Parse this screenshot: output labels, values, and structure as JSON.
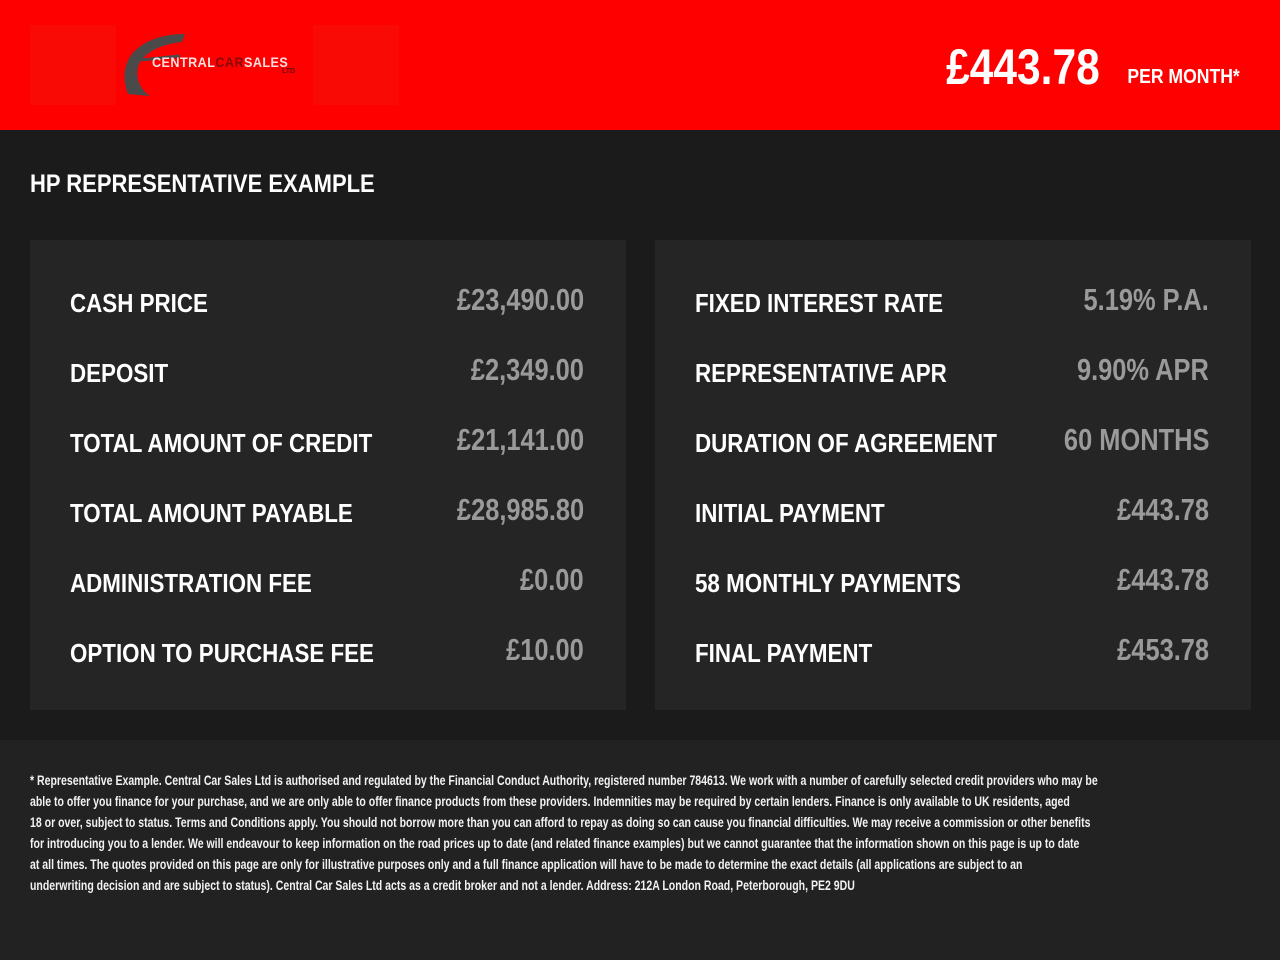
{
  "header": {
    "logo_text_1": "CENTRAL",
    "logo_text_2": "CAR",
    "logo_text_3": "SALES",
    "logo_ltd": "LTD",
    "price": "£443.78",
    "per_month": "PER MONTH*",
    "color": "#fe0000"
  },
  "title": "HP REPRESENTATIVE EXAMPLE",
  "left": [
    {
      "label": "CASH PRICE",
      "value": "£23,490.00"
    },
    {
      "label": "DEPOSIT",
      "value": "£2,349.00"
    },
    {
      "label": "TOTAL AMOUNT OF CREDIT",
      "value": "£21,141.00"
    },
    {
      "label": "TOTAL AMOUNT PAYABLE",
      "value": "£28,985.80"
    },
    {
      "label": "ADMINISTRATION FEE",
      "value": "£0.00"
    },
    {
      "label": "OPTION TO PURCHASE FEE",
      "value": "£10.00"
    }
  ],
  "right": [
    {
      "label": "FIXED INTEREST RATE",
      "value": "5.19% P.A."
    },
    {
      "label": "REPRESENTATIVE APR",
      "value": "9.90% APR"
    },
    {
      "label": "DURATION OF AGREEMENT",
      "value": "60 MONTHS"
    },
    {
      "label": "INITIAL PAYMENT",
      "value": "£443.78"
    },
    {
      "label": "58 MONTHLY PAYMENTS",
      "value": "£443.78"
    },
    {
      "label": "FINAL PAYMENT",
      "value": "£453.78"
    }
  ],
  "footer": [
    "* Representative Example. Central Car Sales Ltd is authorised and regulated by the Financial Conduct Authority, registered number 784613. We work with a number of carefully selected credit providers who may be",
    "able to offer you finance for your purchase, and we are only able to offer finance products from these providers. Indemnities may be required by certain lenders. Finance is only available to UK residents, aged",
    "18 or over, subject to status. Terms and Conditions apply. You should not borrow more than you can afford to repay as doing so can cause you financial difficulties. We may receive a commission or other benefits",
    "for introducing you to a lender. We will endeavour to keep information on the road prices up to date (and related finance examples) but we cannot guarantee that the information shown on this page is up to date",
    "at all times. The quotes provided on this page are only for illustrative purposes only and a full finance application will have to be made to determine the exact details (all applications are subject to an",
    "underwriting decision and are subject to status). Central Car Sales Ltd acts as a credit broker and not a lender. Address:  212A London Road, Peterborough, PE2 9DU"
  ]
}
